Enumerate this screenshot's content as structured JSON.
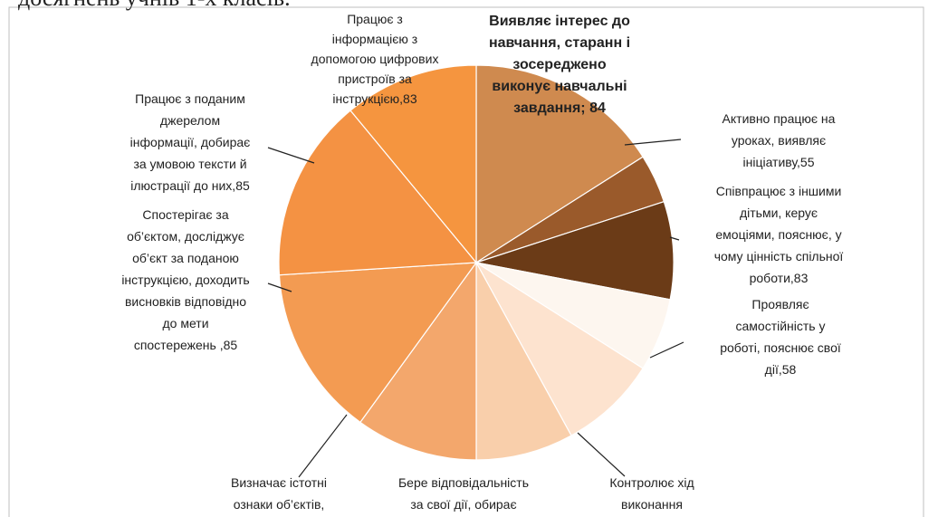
{
  "chart_data": {
    "type": "pie",
    "title": "досягнень учнів 1-х класів.",
    "categories": [
      "Виявляє інтерес до\nнавчання, старанн і\nзосереджено\nвиконує навчальні\nзавдання; 84",
      "Активно працює на\nуроках, виявляє\nініціативу,55",
      "Співпрацює з іншими\nдітьми, керує\nемоціями, пояснює, у\nчому цінність спільної\nроботи,83",
      "Проявляє\nсамостійність у\nроботі, пояснює свої\nдії,58",
      "Контролює хід\nвиконання",
      "Бере відповідальність\nза свої дії, обирає",
      "Визначає істотні\nознаки об’єктів,",
      "Спостерігає за\nоб’єктом, досліджує\nоб’єкт за поданою\nінструкцією, доходить\nвисновків відповідно\nдо  мети\nспостережень ,85",
      "Працює з поданим\nджерелом\nінформації, добирає\nза умовою тексти й\nілюстрації до них,85",
      "Працює з\nінформацією з\nдопомогою цифрових\nпристроїв за\nінструкцією,83"
    ],
    "values": [
      16,
      4,
      8,
      6,
      8,
      8,
      10,
      14,
      15,
      11
    ],
    "colors": [
      "#cf8a4f",
      "#9a5a2b",
      "#6b3b17",
      "#fdf6ef",
      "#fde3cf",
      "#f9cfab",
      "#f3a76c",
      "#f39b52",
      "#f49243",
      "#f5953f"
    ]
  }
}
